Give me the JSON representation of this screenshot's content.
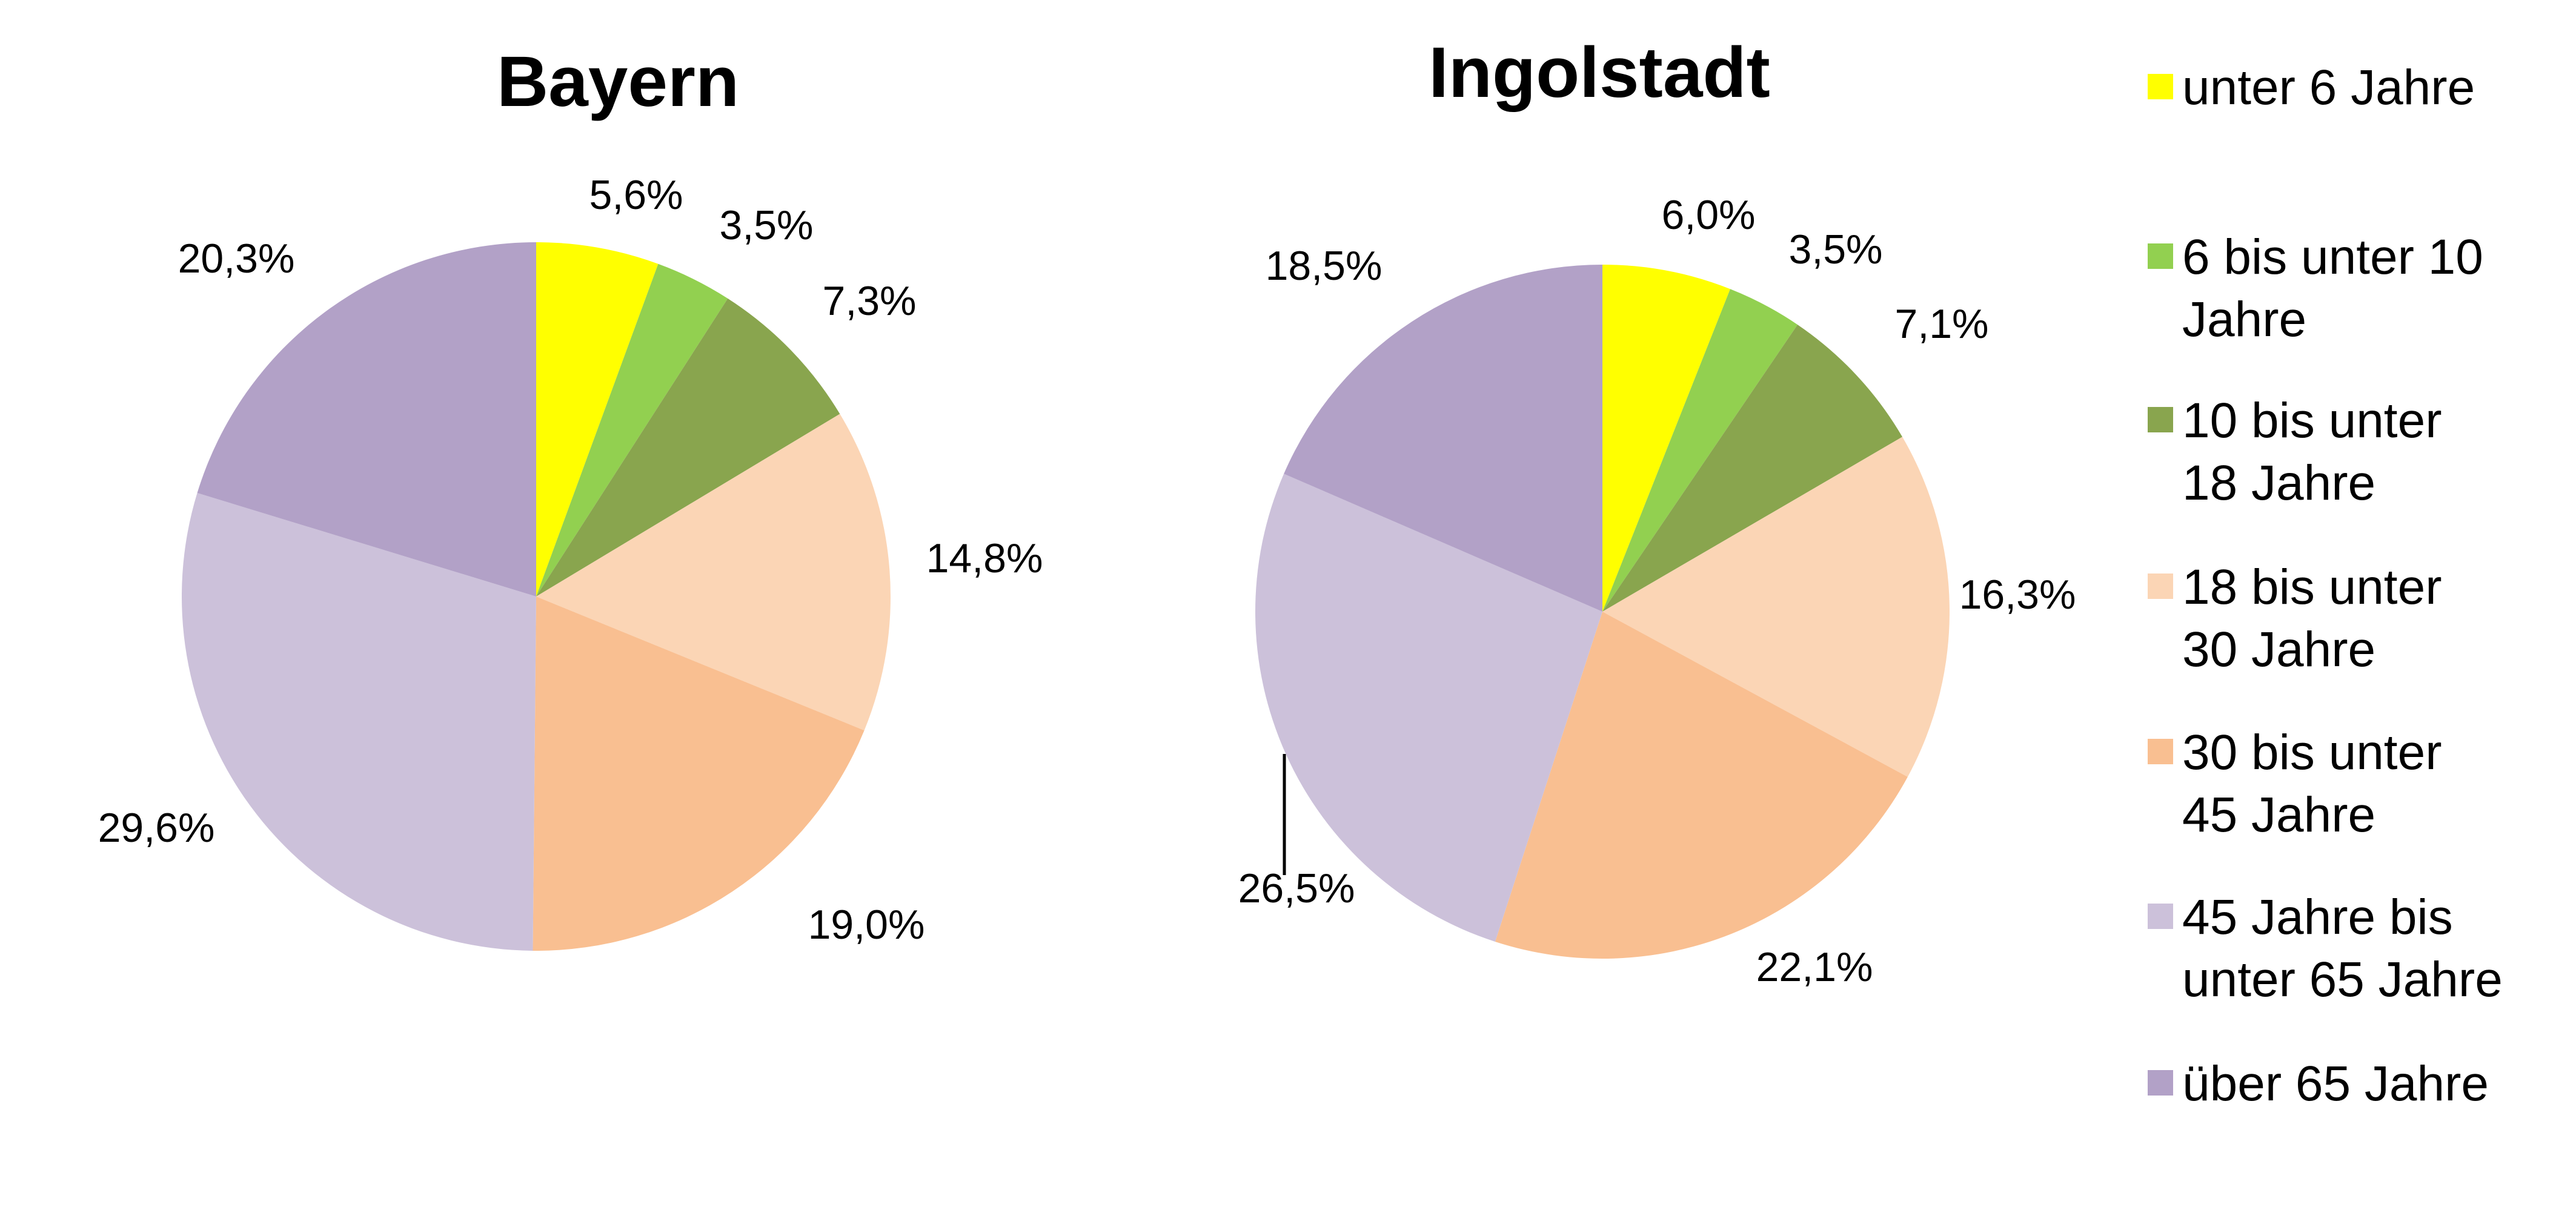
{
  "chart_data": [
    {
      "type": "pie",
      "title": "Bayern",
      "categories": [
        "unter 6 Jahre",
        "6 bis unter 10 Jahre",
        "10 bis unter 18 Jahre",
        "18 bis unter 30 Jahre",
        "30 bis unter 45 Jahre",
        "45 Jahre bis unter 65 Jahre",
        "über 65 Jahre"
      ],
      "values": [
        5.6,
        3.5,
        7.3,
        14.8,
        19.0,
        29.6,
        20.3
      ],
      "labels": [
        "5,6%",
        "3,5%",
        "7,3%",
        "14,8%",
        "19,0%",
        "29,6%",
        "20,3%"
      ]
    },
    {
      "type": "pie",
      "title": "Ingolstadt",
      "categories": [
        "unter 6 Jahre",
        "6 bis unter 10 Jahre",
        "10 bis unter 18 Jahre",
        "18 bis unter 30 Jahre",
        "30 bis unter 45 Jahre",
        "45 Jahre bis unter 65 Jahre",
        "über 65 Jahre"
      ],
      "values": [
        6.0,
        3.5,
        7.1,
        16.3,
        22.1,
        26.5,
        18.5
      ],
      "labels": [
        "6,0%",
        "3,5%",
        "7,1%",
        "16,3%",
        "22,1%",
        "26,5%",
        "18,5%"
      ]
    }
  ],
  "legend": {
    "placement": "right",
    "items": [
      {
        "lines": [
          "unter 6 Jahre"
        ],
        "color": "#FFFF00"
      },
      {
        "lines": [
          "6 bis unter 10",
          "Jahre"
        ],
        "color": "#92D050"
      },
      {
        "lines": [
          "10 bis unter",
          "18 Jahre"
        ],
        "color": "#89A54E"
      },
      {
        "lines": [
          "18 bis unter",
          "30 Jahre"
        ],
        "color": "#FBD5B5"
      },
      {
        "lines": [
          "30 bis unter",
          "45 Jahre"
        ],
        "color": "#F9BF91"
      },
      {
        "lines": [
          "45 Jahre bis",
          "unter 65 Jahre"
        ],
        "color": "#CCC1DA"
      },
      {
        "lines": [
          "über 65 Jahre"
        ],
        "color": "#B2A1C7"
      }
    ]
  },
  "colors": [
    "#FFFF00",
    "#92D050",
    "#89A54E",
    "#FBD5B5",
    "#F9BF91",
    "#CCC1DA",
    "#B2A1C7"
  ]
}
